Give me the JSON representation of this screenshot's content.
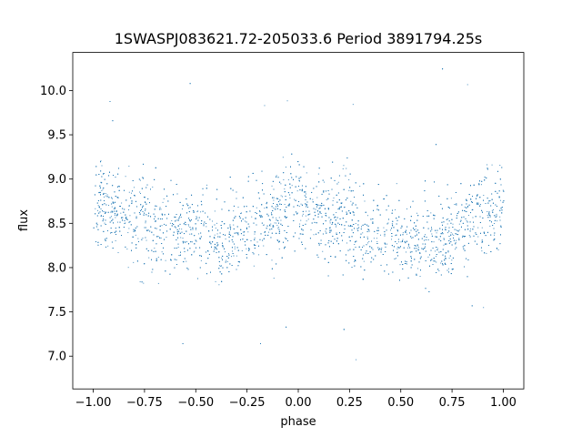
{
  "chart_data": {
    "type": "scatter",
    "title": "1SWASPJ083621.72-205033.6 Period 3891794.25s",
    "xlabel": "phase",
    "ylabel": "flux",
    "xlim": [
      -1.1,
      1.1
    ],
    "ylim": [
      6.63,
      10.43
    ],
    "x_ticks": [
      -1.0,
      -0.75,
      -0.5,
      -0.25,
      0.0,
      0.25,
      0.5,
      0.75,
      1.0
    ],
    "x_tick_labels": [
      "−1.00",
      "−0.75",
      "−0.50",
      "−0.25",
      "0.00",
      "0.25",
      "0.50",
      "0.75",
      "1.00"
    ],
    "y_ticks": [
      7.0,
      7.5,
      8.0,
      8.5,
      9.0,
      9.5,
      10.0
    ],
    "y_tick_labels": [
      "7.0",
      "7.5",
      "8.0",
      "8.5",
      "9.0",
      "9.5",
      "10.0"
    ],
    "grid": false,
    "marker_color": "#1f77b4",
    "series": [
      {
        "x_range": [
          -1.0,
          1.0
        ],
        "phase_flux_profile": {
          "phase": [
            -1.0,
            -0.9,
            -0.8,
            -0.75,
            -0.7,
            -0.6,
            -0.5,
            -0.4,
            -0.3,
            -0.25,
            -0.2,
            -0.1,
            0.0,
            0.1,
            0.2,
            0.25,
            0.3,
            0.4,
            0.5,
            0.6,
            0.7,
            0.75,
            0.8,
            0.9,
            1.0
          ],
          "median_flux": [
            8.75,
            8.6,
            8.55,
            8.6,
            8.5,
            8.42,
            8.38,
            8.3,
            8.35,
            8.45,
            8.5,
            8.6,
            8.72,
            8.65,
            8.55,
            8.5,
            8.45,
            8.4,
            8.35,
            8.3,
            8.35,
            8.45,
            8.5,
            8.6,
            8.72
          ],
          "spread_low": [
            8.05,
            8.1,
            8.0,
            7.6,
            7.9,
            7.95,
            7.85,
            7.85,
            7.9,
            7.95,
            8.0,
            8.1,
            8.2,
            8.1,
            8.05,
            7.6,
            7.9,
            7.9,
            7.85,
            7.85,
            7.85,
            7.9,
            7.95,
            8.05,
            8.15
          ],
          "spread_high": [
            9.35,
            9.2,
            9.2,
            9.2,
            9.1,
            9.05,
            9.0,
            9.0,
            9.1,
            9.2,
            9.15,
            9.25,
            9.45,
            9.3,
            9.2,
            9.2,
            9.1,
            9.05,
            9.05,
            9.0,
            9.0,
            9.1,
            9.15,
            9.25,
            9.35
          ]
        }
      }
    ]
  }
}
